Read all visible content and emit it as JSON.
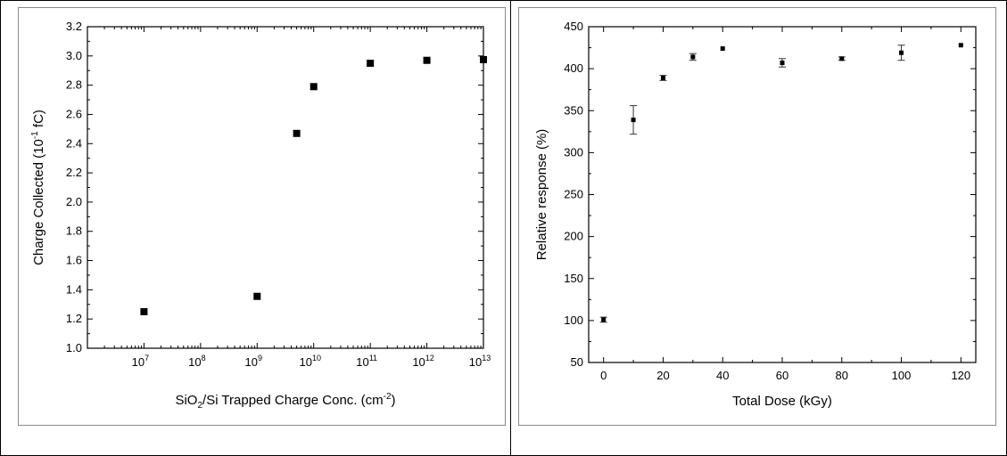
{
  "chart_data": [
    {
      "type": "scatter",
      "xlabel_parts": [
        "SiO",
        "2",
        "/Si Trapped Charge Conc. (cm",
        "-2",
        ")"
      ],
      "ylabel_parts": [
        "Charge Collected (10",
        "-1",
        " fC)"
      ],
      "xscale": "log",
      "xlim": [
        1000000,
        10000000000000
      ],
      "ylim": [
        1.0,
        3.2
      ],
      "x_ticks": [
        {
          "base": "10",
          "exp": "7",
          "value": 10000000
        },
        {
          "base": "10",
          "exp": "8",
          "value": 100000000
        },
        {
          "base": "10",
          "exp": "9",
          "value": 1000000000
        },
        {
          "base": "10",
          "exp": "10",
          "value": 10000000000
        },
        {
          "base": "10",
          "exp": "11",
          "value": 100000000000
        },
        {
          "base": "10",
          "exp": "12",
          "value": 1000000000000
        },
        {
          "base": "10",
          "exp": "13",
          "value": 10000000000000
        }
      ],
      "y_ticks": [
        "1.0",
        "1.2",
        "1.4",
        "1.6",
        "1.8",
        "2.0",
        "2.2",
        "2.4",
        "2.6",
        "2.8",
        "3.0",
        "3.2"
      ],
      "points": [
        {
          "x": 10000000,
          "y": 1.25
        },
        {
          "x": 1000000000,
          "y": 1.355
        },
        {
          "x": 5000000000,
          "y": 2.47
        },
        {
          "x": 10000000000,
          "y": 2.79
        },
        {
          "x": 100000000000,
          "y": 2.95
        },
        {
          "x": 1000000000000,
          "y": 2.97
        },
        {
          "x": 10000000000000,
          "y": 2.975
        }
      ],
      "marker": "square",
      "grid": false
    },
    {
      "type": "scatter",
      "xlabel": "Total Dose (kGy)",
      "ylabel": "Relative response (%)",
      "xlim": [
        -5,
        125
      ],
      "ylim": [
        50,
        450
      ],
      "x_ticks": [
        "0",
        "20",
        "40",
        "60",
        "80",
        "100",
        "120"
      ],
      "y_ticks": [
        "50",
        "100",
        "150",
        "200",
        "250",
        "300",
        "350",
        "400",
        "450"
      ],
      "points": [
        {
          "x": 0,
          "y": 101,
          "err": 3
        },
        {
          "x": 10,
          "y": 339,
          "err": 17
        },
        {
          "x": 20,
          "y": 389,
          "err": 3
        },
        {
          "x": 30,
          "y": 414,
          "err": 4
        },
        {
          "x": 40,
          "y": 424,
          "err": 1
        },
        {
          "x": 60,
          "y": 407,
          "err": 5
        },
        {
          "x": 80,
          "y": 412,
          "err": 2
        },
        {
          "x": 100,
          "y": 419,
          "err": 9
        },
        {
          "x": 120,
          "y": 428,
          "err": 1
        }
      ],
      "marker": "square",
      "error_bars": true,
      "grid": false
    }
  ]
}
